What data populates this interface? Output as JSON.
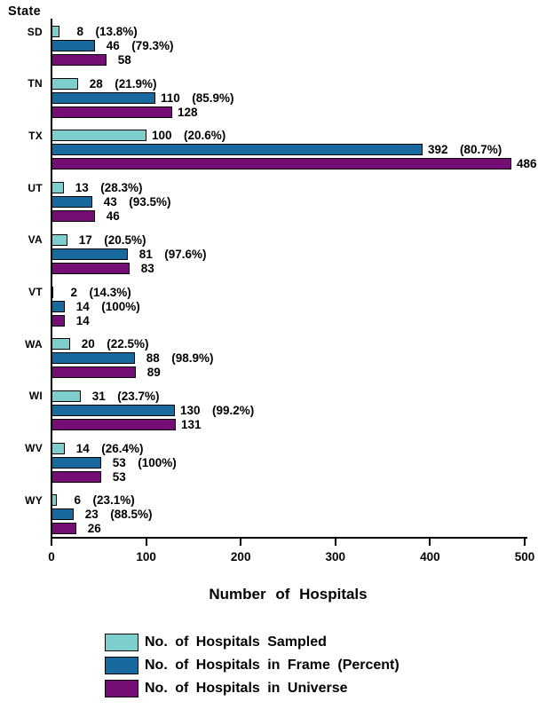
{
  "chart_data": {
    "type": "bar",
    "orientation": "horizontal",
    "ylabel": "State",
    "xlabel": "Number of Hospitals",
    "xlim": [
      0,
      500
    ],
    "xticks": [
      0,
      100,
      200,
      300,
      400,
      500
    ],
    "grid": false,
    "legend_position": "bottom",
    "categories": [
      "SD",
      "TN",
      "TX",
      "UT",
      "VA",
      "VT",
      "WA",
      "WI",
      "WV",
      "WY"
    ],
    "series": [
      {
        "name": "No. of Hospitals Sampled",
        "color": "#7FCECE",
        "values": [
          8,
          28,
          100,
          13,
          17,
          2,
          20,
          31,
          14,
          6
        ],
        "percent_labels": [
          "13.8%",
          "21.9%",
          "20.6%",
          "28.3%",
          "20.5%",
          "14.3%",
          "22.5%",
          "23.7%",
          "26.4%",
          "23.1%"
        ]
      },
      {
        "name": "No. of Hospitals in Frame (Percent)",
        "color": "#17699E",
        "values": [
          46,
          110,
          392,
          43,
          81,
          14,
          88,
          130,
          53,
          23
        ],
        "percent_labels": [
          "79.3%",
          "85.9%",
          "80.7%",
          "93.5%",
          "97.6%",
          "100%",
          "98.9%",
          "99.2%",
          "100%",
          "88.5%"
        ]
      },
      {
        "name": "No. of Hospitals in Universe",
        "color": "#740E74",
        "values": [
          58,
          128,
          486,
          46,
          83,
          14,
          89,
          131,
          53,
          26
        ]
      }
    ]
  }
}
